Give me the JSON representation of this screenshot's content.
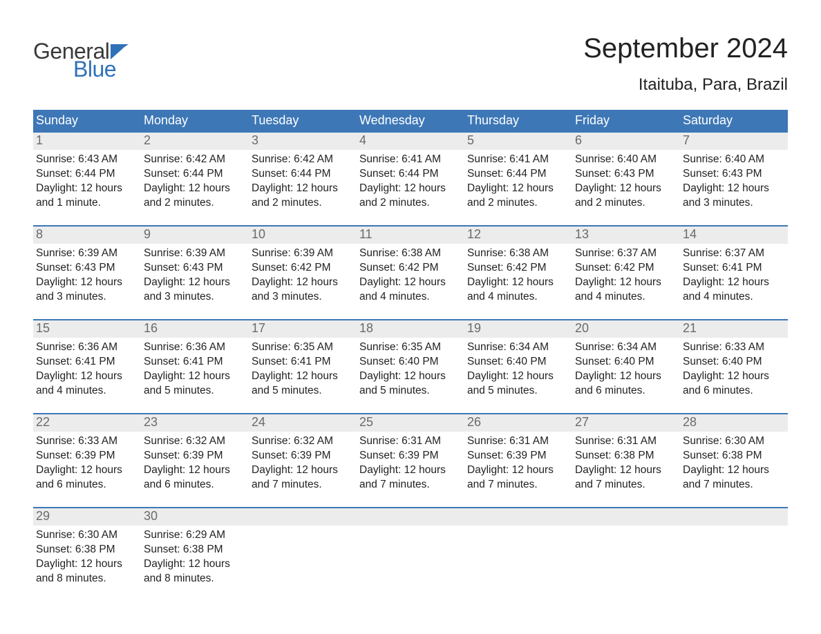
{
  "brand": {
    "word1": "General",
    "word2": "Blue",
    "word1_color": "#3a3a3a",
    "word2_color": "#2f71b8",
    "flag_color": "#2f71b8",
    "font_size_pt": 24
  },
  "title": {
    "month": "September 2024",
    "location": "Itaituba, Para, Brazil",
    "month_font_size_pt": 30,
    "location_font_size_pt": 18,
    "text_color": "#222222"
  },
  "calendar": {
    "type": "table",
    "header_bg": "#3d77b6",
    "header_text_color": "#ffffff",
    "row_divider_color": "#3d77b6",
    "daynum_bg": "#ececec",
    "daynum_color": "#6a6a6a",
    "body_text_color": "#222222",
    "background_color": "#ffffff",
    "body_font_size_pt": 12,
    "header_font_size_pt": 14,
    "daynum_font_size_pt": 14,
    "weekdays": [
      "Sunday",
      "Monday",
      "Tuesday",
      "Wednesday",
      "Thursday",
      "Friday",
      "Saturday"
    ],
    "labels": {
      "sunrise": "Sunrise:",
      "sunset": "Sunset:",
      "daylight": "Daylight:"
    },
    "weeks": [
      [
        {
          "n": "1",
          "sunrise": "6:43 AM",
          "sunset": "6:44 PM",
          "daylight": "12 hours and 1 minute."
        },
        {
          "n": "2",
          "sunrise": "6:42 AM",
          "sunset": "6:44 PM",
          "daylight": "12 hours and 2 minutes."
        },
        {
          "n": "3",
          "sunrise": "6:42 AM",
          "sunset": "6:44 PM",
          "daylight": "12 hours and 2 minutes."
        },
        {
          "n": "4",
          "sunrise": "6:41 AM",
          "sunset": "6:44 PM",
          "daylight": "12 hours and 2 minutes."
        },
        {
          "n": "5",
          "sunrise": "6:41 AM",
          "sunset": "6:44 PM",
          "daylight": "12 hours and 2 minutes."
        },
        {
          "n": "6",
          "sunrise": "6:40 AM",
          "sunset": "6:43 PM",
          "daylight": "12 hours and 2 minutes."
        },
        {
          "n": "7",
          "sunrise": "6:40 AM",
          "sunset": "6:43 PM",
          "daylight": "12 hours and 3 minutes."
        }
      ],
      [
        {
          "n": "8",
          "sunrise": "6:39 AM",
          "sunset": "6:43 PM",
          "daylight": "12 hours and 3 minutes."
        },
        {
          "n": "9",
          "sunrise": "6:39 AM",
          "sunset": "6:43 PM",
          "daylight": "12 hours and 3 minutes."
        },
        {
          "n": "10",
          "sunrise": "6:39 AM",
          "sunset": "6:42 PM",
          "daylight": "12 hours and 3 minutes."
        },
        {
          "n": "11",
          "sunrise": "6:38 AM",
          "sunset": "6:42 PM",
          "daylight": "12 hours and 4 minutes."
        },
        {
          "n": "12",
          "sunrise": "6:38 AM",
          "sunset": "6:42 PM",
          "daylight": "12 hours and 4 minutes."
        },
        {
          "n": "13",
          "sunrise": "6:37 AM",
          "sunset": "6:42 PM",
          "daylight": "12 hours and 4 minutes."
        },
        {
          "n": "14",
          "sunrise": "6:37 AM",
          "sunset": "6:41 PM",
          "daylight": "12 hours and 4 minutes."
        }
      ],
      [
        {
          "n": "15",
          "sunrise": "6:36 AM",
          "sunset": "6:41 PM",
          "daylight": "12 hours and 4 minutes."
        },
        {
          "n": "16",
          "sunrise": "6:36 AM",
          "sunset": "6:41 PM",
          "daylight": "12 hours and 5 minutes."
        },
        {
          "n": "17",
          "sunrise": "6:35 AM",
          "sunset": "6:41 PM",
          "daylight": "12 hours and 5 minutes."
        },
        {
          "n": "18",
          "sunrise": "6:35 AM",
          "sunset": "6:40 PM",
          "daylight": "12 hours and 5 minutes."
        },
        {
          "n": "19",
          "sunrise": "6:34 AM",
          "sunset": "6:40 PM",
          "daylight": "12 hours and 5 minutes."
        },
        {
          "n": "20",
          "sunrise": "6:34 AM",
          "sunset": "6:40 PM",
          "daylight": "12 hours and 6 minutes."
        },
        {
          "n": "21",
          "sunrise": "6:33 AM",
          "sunset": "6:40 PM",
          "daylight": "12 hours and 6 minutes."
        }
      ],
      [
        {
          "n": "22",
          "sunrise": "6:33 AM",
          "sunset": "6:39 PM",
          "daylight": "12 hours and 6 minutes."
        },
        {
          "n": "23",
          "sunrise": "6:32 AM",
          "sunset": "6:39 PM",
          "daylight": "12 hours and 6 minutes."
        },
        {
          "n": "24",
          "sunrise": "6:32 AM",
          "sunset": "6:39 PM",
          "daylight": "12 hours and 7 minutes."
        },
        {
          "n": "25",
          "sunrise": "6:31 AM",
          "sunset": "6:39 PM",
          "daylight": "12 hours and 7 minutes."
        },
        {
          "n": "26",
          "sunrise": "6:31 AM",
          "sunset": "6:39 PM",
          "daylight": "12 hours and 7 minutes."
        },
        {
          "n": "27",
          "sunrise": "6:31 AM",
          "sunset": "6:38 PM",
          "daylight": "12 hours and 7 minutes."
        },
        {
          "n": "28",
          "sunrise": "6:30 AM",
          "sunset": "6:38 PM",
          "daylight": "12 hours and 7 minutes."
        }
      ],
      [
        {
          "n": "29",
          "sunrise": "6:30 AM",
          "sunset": "6:38 PM",
          "daylight": "12 hours and 8 minutes."
        },
        {
          "n": "30",
          "sunrise": "6:29 AM",
          "sunset": "6:38 PM",
          "daylight": "12 hours and 8 minutes."
        },
        {
          "empty": true
        },
        {
          "empty": true
        },
        {
          "empty": true
        },
        {
          "empty": true
        },
        {
          "empty": true
        }
      ]
    ]
  }
}
